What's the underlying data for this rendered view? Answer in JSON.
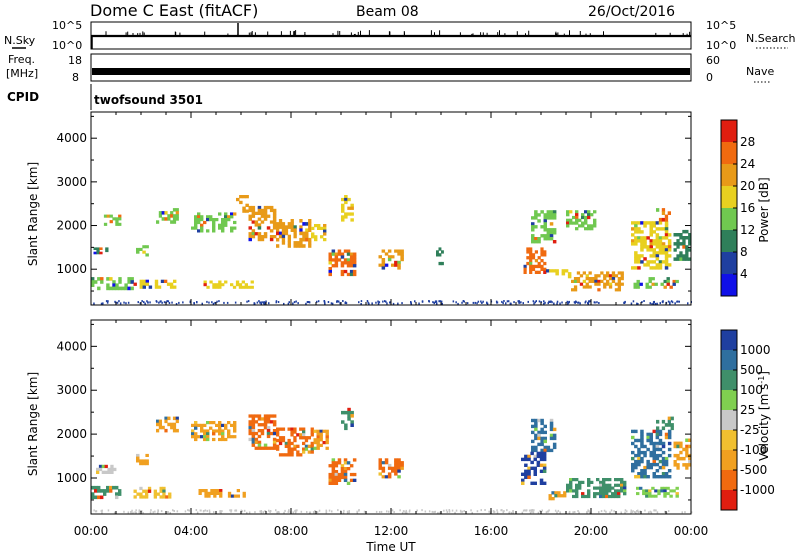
{
  "header": {
    "station": "Dome C East (fitACF)",
    "beam": "Beam 08",
    "date": "26/Oct/2016"
  },
  "strips": {
    "nsky_label": "N.Sky",
    "nsky_ticks": [
      "10^5",
      "10^0"
    ],
    "nsearch_label": "N.Search",
    "nsearch_ticks": [
      "10^5",
      "10^0"
    ],
    "freq_label_1": "Freq.",
    "freq_label_2": "[MHz]",
    "freq_ticks": [
      "18",
      "8"
    ],
    "nave_label": "Nave",
    "nave_ticks": [
      "60",
      "0"
    ],
    "cpid_label": "CPID",
    "cpid_value": "twofsound 3501"
  },
  "colors": {
    "power_scale": [
      "#1010e8",
      "#1f3fa0",
      "#2f7f5a",
      "#70c850",
      "#e8d020",
      "#e89a18",
      "#f06a10",
      "#e01e10"
    ],
    "velocity_scale": [
      "#e01e10",
      "#f06a10",
      "#f0a020",
      "#f0c030",
      "#c8c8c8",
      "#80d050",
      "#3f8f6a",
      "#2f6f9f",
      "#1f3fa0"
    ]
  },
  "chart_data": [
    {
      "type": "heatmap",
      "panel": "power",
      "xlabel": "Time UT",
      "ylabel": "Slant Range [km]",
      "x_ticks": [
        "00:00",
        "04:00",
        "08:00",
        "12:00",
        "16:00",
        "20:00",
        "00:00"
      ],
      "xlim": [
        0,
        24
      ],
      "y_ticks": [
        1000,
        2000,
        3000,
        4000
      ],
      "ylim": [
        180,
        4600
      ],
      "colorbar_label": "Power [dB]",
      "colorbar_ticks": [
        4,
        8,
        12,
        16,
        20,
        24,
        28
      ],
      "colorbar_range": [
        0,
        32
      ],
      "patches": [
        {
          "t0": 0.0,
          "t1": 1.7,
          "r0": 530,
          "r1": 820,
          "v": 14
        },
        {
          "t0": 1.7,
          "t1": 3.4,
          "r0": 560,
          "r1": 760,
          "v": 18
        },
        {
          "t0": 4.5,
          "t1": 6.5,
          "r0": 560,
          "r1": 740,
          "v": 16
        },
        {
          "t0": 0.1,
          "t1": 0.8,
          "r0": 1350,
          "r1": 1500,
          "v": 8
        },
        {
          "t0": 0.4,
          "t1": 1.2,
          "r0": 2000,
          "r1": 2250,
          "v": 12
        },
        {
          "t0": 1.8,
          "t1": 2.3,
          "r0": 1300,
          "r1": 1550,
          "v": 12
        },
        {
          "t0": 2.6,
          "t1": 3.5,
          "r0": 2050,
          "r1": 2400,
          "v": 14
        },
        {
          "t0": 4.0,
          "t1": 5.8,
          "r0": 1850,
          "r1": 2300,
          "v": 12
        },
        {
          "t0": 5.8,
          "t1": 6.3,
          "r0": 2300,
          "r1": 2700,
          "v": 20
        },
        {
          "t0": 6.3,
          "t1": 7.4,
          "r0": 1650,
          "r1": 2450,
          "v": 22
        },
        {
          "t0": 7.4,
          "t1": 8.8,
          "r0": 1500,
          "r1": 2150,
          "v": 20
        },
        {
          "t0": 8.8,
          "t1": 9.4,
          "r0": 1650,
          "r1": 2100,
          "v": 16
        },
        {
          "t0": 9.5,
          "t1": 10.6,
          "r0": 850,
          "r1": 1450,
          "v": 26
        },
        {
          "t0": 10.0,
          "t1": 10.5,
          "r0": 2100,
          "r1": 2700,
          "v": 18
        },
        {
          "t0": 11.5,
          "t1": 12.5,
          "r0": 1000,
          "r1": 1450,
          "v": 20
        },
        {
          "t0": 13.8,
          "t1": 14.1,
          "r0": 1100,
          "r1": 1500,
          "v": 8
        },
        {
          "t0": 17.6,
          "t1": 18.6,
          "r0": 1600,
          "r1": 2350,
          "v": 14
        },
        {
          "t0": 17.3,
          "t1": 18.2,
          "r0": 900,
          "r1": 1500,
          "v": 24
        },
        {
          "t0": 18.2,
          "t1": 19.2,
          "r0": 800,
          "r1": 1000,
          "v": 18
        },
        {
          "t0": 19.2,
          "t1": 21.3,
          "r0": 500,
          "r1": 950,
          "v": 22
        },
        {
          "t0": 19.0,
          "t1": 20.2,
          "r0": 1900,
          "r1": 2350,
          "v": 14
        },
        {
          "t0": 21.6,
          "t1": 23.2,
          "r0": 1000,
          "r1": 2100,
          "v": 18
        },
        {
          "t0": 22.6,
          "t1": 23.3,
          "r0": 2100,
          "r1": 2400,
          "v": 26
        },
        {
          "t0": 21.7,
          "t1": 23.5,
          "r0": 560,
          "r1": 820,
          "v": 12
        },
        {
          "t0": 23.3,
          "t1": 24.0,
          "r0": 1200,
          "r1": 1900,
          "v": 10
        }
      ]
    },
    {
      "type": "heatmap",
      "panel": "velocity",
      "xlabel": "Time UT",
      "ylabel": "Slant Range [km]",
      "x_ticks": [
        "00:00",
        "04:00",
        "08:00",
        "12:00",
        "16:00",
        "20:00",
        "00:00"
      ],
      "xlim": [
        0,
        24
      ],
      "y_ticks": [
        1000,
        2000,
        3000,
        4000
      ],
      "ylim": [
        180,
        4600
      ],
      "colorbar_label_main": "Velocity",
      "colorbar_label_unit": "[m s",
      "colorbar_label_sup": "-1",
      "colorbar_label_close": "]",
      "colorbar_ticks": [
        "1000",
        "500",
        "100",
        "25",
        "-25",
        "-100",
        "-500",
        "-1000"
      ],
      "patches": [
        {
          "t0": 0.0,
          "t1": 1.2,
          "r0": 530,
          "r1": 820,
          "v": 6
        },
        {
          "t0": 1.7,
          "t1": 3.2,
          "r0": 540,
          "r1": 800,
          "v": 3
        },
        {
          "t0": 4.3,
          "t1": 6.3,
          "r0": 560,
          "r1": 750,
          "v": 2
        },
        {
          "t0": 0.2,
          "t1": 1.0,
          "r0": 1100,
          "r1": 1300,
          "v": 4
        },
        {
          "t0": 1.8,
          "t1": 2.3,
          "r0": 1300,
          "r1": 1550,
          "v": 2
        },
        {
          "t0": 2.6,
          "t1": 3.5,
          "r0": 2050,
          "r1": 2400,
          "v": 2
        },
        {
          "t0": 4.0,
          "t1": 5.8,
          "r0": 1850,
          "r1": 2300,
          "v": 2
        },
        {
          "t0": 6.3,
          "t1": 7.4,
          "r0": 1650,
          "r1": 2450,
          "v": 1
        },
        {
          "t0": 7.4,
          "t1": 8.9,
          "r0": 1500,
          "r1": 2150,
          "v": 1
        },
        {
          "t0": 8.9,
          "t1": 9.5,
          "r0": 1650,
          "r1": 2100,
          "v": 2
        },
        {
          "t0": 9.5,
          "t1": 10.6,
          "r0": 850,
          "r1": 1450,
          "v": 1
        },
        {
          "t0": 10.0,
          "t1": 10.5,
          "r0": 2100,
          "r1": 2600,
          "v": 6
        },
        {
          "t0": 11.5,
          "t1": 12.5,
          "r0": 1000,
          "r1": 1450,
          "v": 1
        },
        {
          "t0": 17.6,
          "t1": 18.6,
          "r0": 1600,
          "r1": 2350,
          "v": 7
        },
        {
          "t0": 17.2,
          "t1": 18.2,
          "r0": 850,
          "r1": 1600,
          "v": 8
        },
        {
          "t0": 18.3,
          "t1": 19.0,
          "r0": 500,
          "r1": 700,
          "v": 2
        },
        {
          "t0": 19.0,
          "t1": 21.4,
          "r0": 550,
          "r1": 1000,
          "v": 6
        },
        {
          "t0": 21.6,
          "t1": 23.2,
          "r0": 1000,
          "r1": 2100,
          "v": 7
        },
        {
          "t0": 22.6,
          "t1": 23.3,
          "r0": 2100,
          "r1": 2400,
          "v": 6
        },
        {
          "t0": 21.8,
          "t1": 23.5,
          "r0": 560,
          "r1": 800,
          "v": 5
        },
        {
          "t0": 23.3,
          "t1": 24.0,
          "r0": 1200,
          "r1": 1900,
          "v": 2
        }
      ]
    }
  ]
}
